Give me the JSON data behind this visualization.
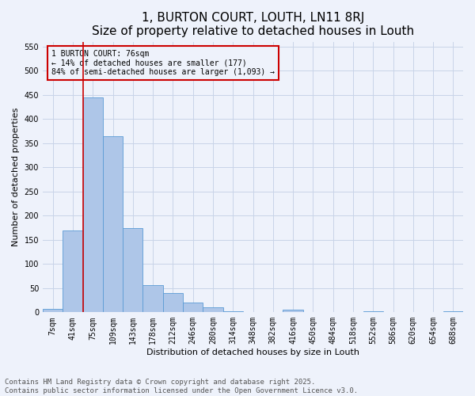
{
  "title": "1, BURTON COURT, LOUTH, LN11 8RJ",
  "subtitle": "Size of property relative to detached houses in Louth",
  "xlabel": "Distribution of detached houses by size in Louth",
  "ylabel": "Number of detached properties",
  "categories": [
    "7sqm",
    "41sqm",
    "75sqm",
    "109sqm",
    "143sqm",
    "178sqm",
    "212sqm",
    "246sqm",
    "280sqm",
    "314sqm",
    "348sqm",
    "382sqm",
    "416sqm",
    "450sqm",
    "484sqm",
    "518sqm",
    "552sqm",
    "586sqm",
    "620sqm",
    "654sqm",
    "688sqm"
  ],
  "values": [
    7,
    170,
    445,
    365,
    175,
    57,
    40,
    20,
    10,
    3,
    0,
    0,
    5,
    0,
    0,
    0,
    3,
    0,
    0,
    0,
    3
  ],
  "bar_color": "#aec6e8",
  "bar_edge_color": "#5b9bd5",
  "highlight_line_col_index": 2,
  "highlight_line_color": "#cc0000",
  "annotation_text": "1 BURTON COURT: 76sqm\n← 14% of detached houses are smaller (177)\n84% of semi-detached houses are larger (1,093) →",
  "annotation_box_color": "#cc0000",
  "ylim": [
    0,
    560
  ],
  "yticks": [
    0,
    50,
    100,
    150,
    200,
    250,
    300,
    350,
    400,
    450,
    500,
    550
  ],
  "background_color": "#eef2fb",
  "grid_color": "#c8d4e8",
  "footnote": "Contains HM Land Registry data © Crown copyright and database right 2025.\nContains public sector information licensed under the Open Government Licence v3.0.",
  "title_fontsize": 11,
  "axis_label_fontsize": 8,
  "tick_fontsize": 7,
  "annotation_fontsize": 7,
  "footnote_fontsize": 6.5
}
